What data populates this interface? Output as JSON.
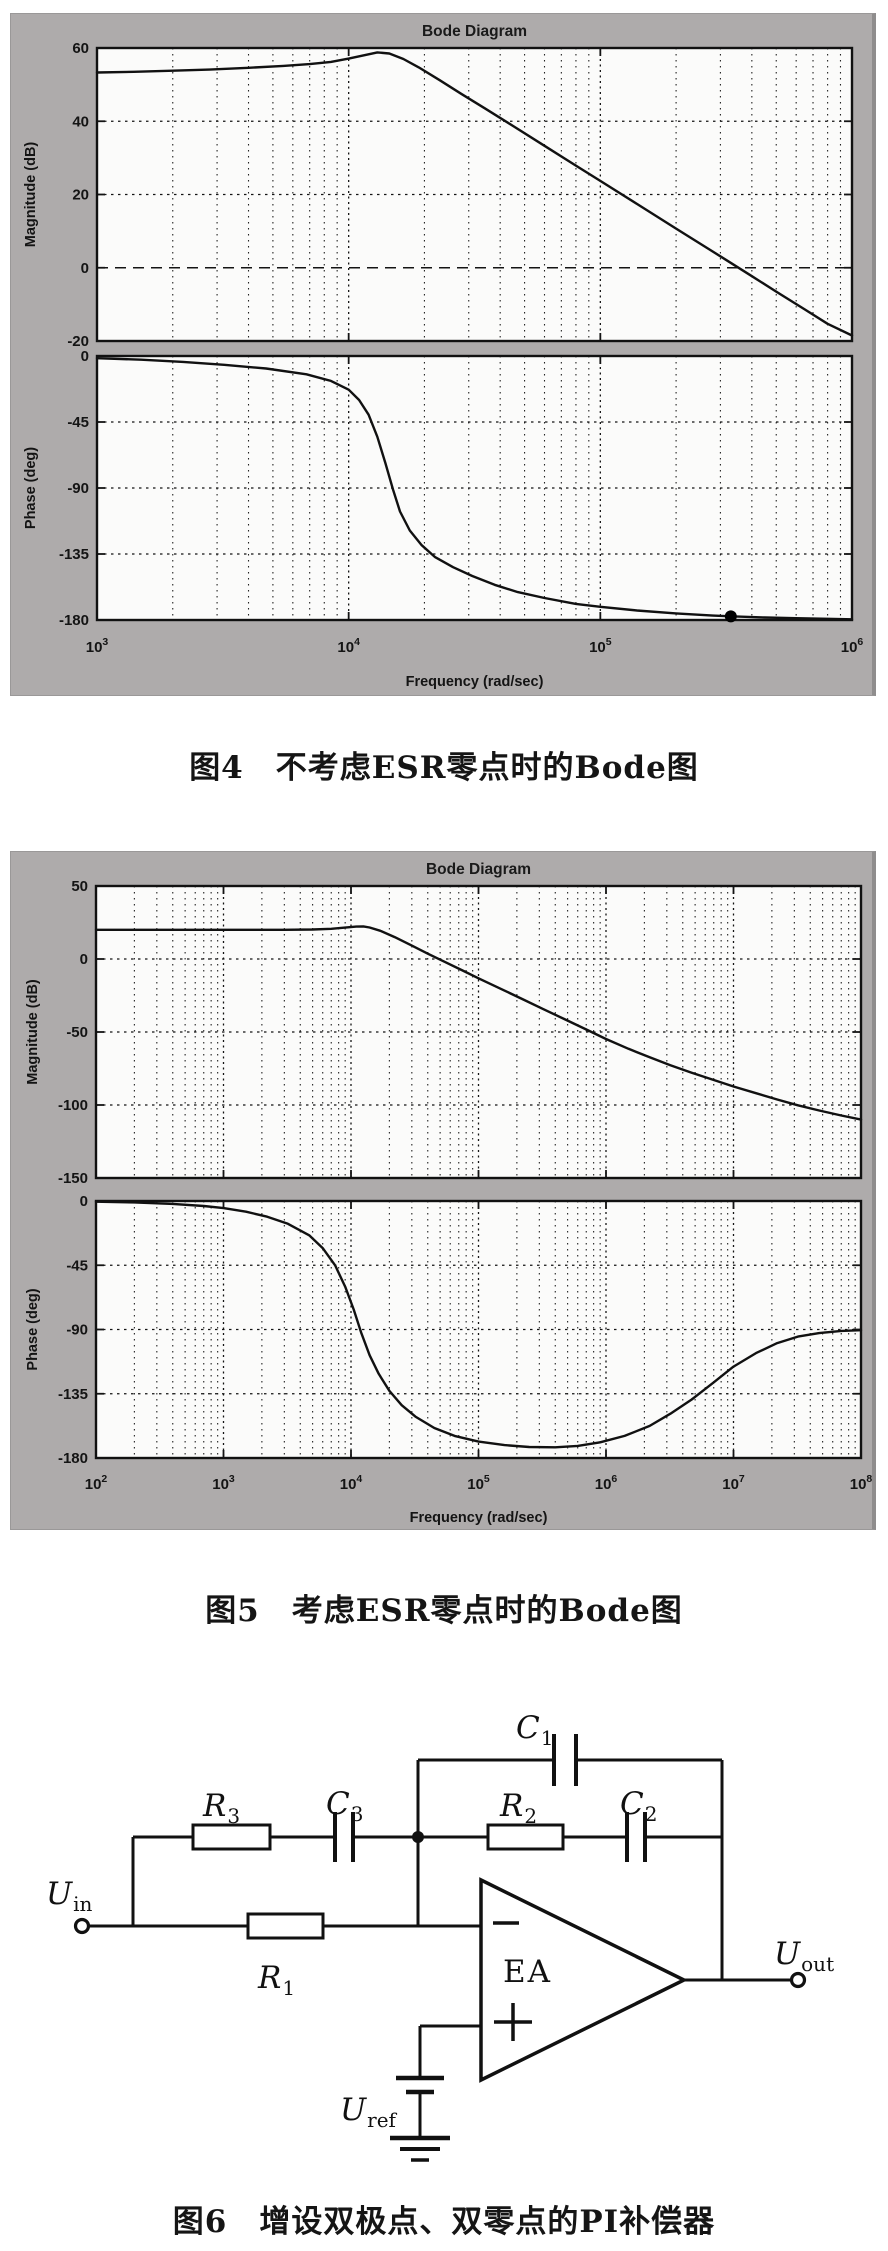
{
  "page": {
    "background": "#ffffff",
    "panel_gray": "#aeabab",
    "curve_color": "#141414"
  },
  "captions": {
    "fig4": "图4　不考虑ESR零点时的Bode图",
    "fig5": "图5　考虑ESR零点时的Bode图",
    "fig6": "图6　增设双极点、双零点的PI补偿器"
  },
  "chart_data": [
    {
      "id": "fig4-magnitude",
      "type": "line",
      "title": "Bode Diagram",
      "ylabel": "Magnitude (dB)",
      "xlabel": "",
      "x_scale": "log",
      "x_range_exp": [
        3,
        6
      ],
      "x_label_exps": [
        3,
        4,
        5,
        6
      ],
      "ylim": [
        -20,
        60
      ],
      "y_ticks": [
        60,
        40,
        20,
        0,
        -20
      ],
      "emphasized_ticks": [
        0
      ],
      "grid": true,
      "legend": null,
      "x": [
        1000,
        1400,
        2000,
        2800,
        4000,
        5500,
        7000,
        8500,
        10000,
        11500,
        13000,
        14500,
        16500,
        19000,
        23000,
        28000,
        35000,
        45000,
        60000,
        80000,
        100000,
        140000,
        200000,
        270000,
        320000,
        400000,
        500000,
        650000,
        800000,
        1000000
      ],
      "y": [
        53.3,
        53.5,
        53.8,
        54.1,
        54.6,
        55.1,
        55.6,
        56.2,
        57.1,
        58.0,
        58.8,
        58.5,
        57.0,
        54.7,
        51.2,
        47.5,
        43.4,
        38.7,
        33.3,
        27.9,
        23.7,
        17.4,
        10.7,
        5.1,
        1.9,
        -2.3,
        -6.5,
        -11.4,
        -15.3,
        -18.5
      ]
    },
    {
      "id": "fig4-phase",
      "type": "line",
      "title": "",
      "ylabel": "Phase (deg)",
      "xlabel": "Frequency (rad/sec)",
      "x_scale": "log",
      "x_range_exp": [
        3,
        6
      ],
      "x_label_exps": [
        3,
        4,
        5,
        6
      ],
      "ylim": [
        -180,
        0
      ],
      "y_ticks": [
        0,
        -45,
        -90,
        -135,
        -180
      ],
      "emphasized_ticks": [
        -180
      ],
      "grid": true,
      "legend": null,
      "marker": {
        "x": 330000,
        "y": -177.5
      },
      "x": [
        1000,
        1500,
        2200,
        3200,
        4700,
        6800,
        8500,
        10000,
        11000,
        12000,
        13000,
        14000,
        15000,
        16000,
        17500,
        19500,
        22000,
        26000,
        31000,
        38000,
        47000,
        60000,
        80000,
        100000,
        140000,
        200000,
        280000,
        330000,
        450000,
        600000,
        800000,
        1000000
      ],
      "y": [
        -1.5,
        -2.5,
        -4,
        -6,
        -8.5,
        -12.5,
        -17,
        -23,
        -30,
        -40,
        -55,
        -73,
        -91,
        -106,
        -119,
        -129,
        -137,
        -144,
        -150,
        -156,
        -161,
        -165,
        -169,
        -171,
        -173.5,
        -175.5,
        -177,
        -177.5,
        -178.3,
        -178.8,
        -179.2,
        -179.5
      ]
    },
    {
      "id": "fig5-magnitude",
      "type": "line",
      "title": "Bode Diagram",
      "ylabel": "Magnitude (dB)",
      "xlabel": "",
      "x_scale": "log",
      "x_range_exp": [
        2,
        8
      ],
      "x_label_exps": [
        2,
        3,
        4,
        5,
        6,
        7,
        8
      ],
      "ylim": [
        -150,
        50
      ],
      "y_ticks": [
        50,
        0,
        -50,
        -100,
        -150
      ],
      "emphasized_ticks": [],
      "grid": true,
      "legend": null,
      "x": [
        100,
        300,
        1000,
        3000,
        5000,
        7000,
        9000,
        11000,
        12500,
        14000,
        17000,
        22000,
        30000,
        40000,
        55000,
        75000,
        100000,
        150000,
        220000,
        320000,
        470000,
        700000,
        1000000,
        1500000,
        2200000,
        3200000,
        4700000,
        7000000,
        10000000,
        15000000,
        22000000,
        32000000,
        47000000,
        70000000,
        100000000
      ],
      "y": [
        20,
        20,
        20,
        20,
        20.2,
        20.7,
        21.5,
        22.2,
        22.3,
        21.6,
        19.3,
        15.0,
        9.2,
        3.6,
        -2.2,
        -7.9,
        -13.2,
        -20.5,
        -27.4,
        -34.2,
        -41.1,
        -48.3,
        -54.8,
        -61.5,
        -67.3,
        -72.8,
        -77.9,
        -82.9,
        -87.3,
        -91.9,
        -96.2,
        -100.2,
        -103.8,
        -107.2,
        -110
      ]
    },
    {
      "id": "fig5-phase",
      "type": "line",
      "title": "",
      "ylabel": "Phase (deg)",
      "xlabel": "Frequency (rad/sec)",
      "x_scale": "log",
      "x_range_exp": [
        2,
        8
      ],
      "x_label_exps": [
        2,
        3,
        4,
        5,
        6,
        7,
        8
      ],
      "ylim": [
        -180,
        0
      ],
      "y_ticks": [
        0,
        -45,
        -90,
        -135,
        -180
      ],
      "emphasized_ticks": [
        -180
      ],
      "grid": true,
      "legend": null,
      "x": [
        100,
        200,
        400,
        700,
        1000,
        1500,
        2200,
        3200,
        4700,
        6000,
        7500,
        9000,
        10500,
        12000,
        14000,
        16500,
        20000,
        25000,
        32000,
        45000,
        65000,
        100000,
        160000,
        250000,
        400000,
        600000,
        900000,
        1400000,
        2200000,
        3200000,
        4700000,
        7000000,
        10000000,
        15000000,
        22000000,
        32000000,
        47000000,
        70000000,
        100000000
      ],
      "y": [
        -0.5,
        -1,
        -2,
        -3.5,
        -5,
        -7.5,
        -11,
        -16,
        -24,
        -33,
        -45,
        -60,
        -76,
        -92,
        -108,
        -121,
        -133,
        -143,
        -151,
        -159,
        -164.5,
        -168.5,
        -171,
        -172.3,
        -172.5,
        -171.5,
        -169,
        -164.5,
        -157.5,
        -149,
        -139,
        -127,
        -116,
        -106.5,
        -99.5,
        -95,
        -92.5,
        -91,
        -90.5
      ]
    }
  ],
  "circuit": {
    "amplifier": "EA",
    "labels": {
      "uin": {
        "main": "U",
        "sub": "in"
      },
      "uout": {
        "main": "U",
        "sub": "out"
      },
      "uref": {
        "main": "U",
        "sub": "ref"
      },
      "r1": {
        "main": "R",
        "sub": "1"
      },
      "r2": {
        "main": "R",
        "sub": "2"
      },
      "r3": {
        "main": "R",
        "sub": "3"
      },
      "c1": {
        "main": "C",
        "sub": "1"
      },
      "c2": {
        "main": "C",
        "sub": "2"
      },
      "c3": {
        "main": "C",
        "sub": "3"
      },
      "minus": "−",
      "plus": "+"
    }
  }
}
